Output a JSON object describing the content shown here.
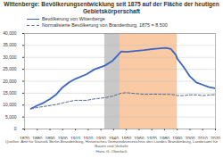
{
  "chart_data": {
    "type": "line",
    "title": "Wittenberge: Bevölkerungsentwicklung seit 1875 auf der Fläche der heutigen Gebietskörperschaft",
    "x": [
      1875,
      1880,
      1885,
      1890,
      1895,
      1900,
      1905,
      1910,
      1919,
      1925,
      1933,
      1939,
      1946,
      1950,
      1964,
      1971,
      1981,
      1985,
      1989,
      1990,
      1995,
      2000,
      2005,
      2010,
      2015,
      2020
    ],
    "series": [
      {
        "name": "Bevölkerung von Wittenberge",
        "color": "#3a66c4",
        "line_style": "solid",
        "values": [
          8500,
          9800,
          11000,
          12500,
          14500,
          17500,
          19500,
          21000,
          23000,
          25000,
          26500,
          28500,
          32500,
          32300,
          33000,
          33500,
          34000,
          33500,
          31000,
          29500,
          26000,
          22000,
          19500,
          18500,
          17500,
          17000
        ]
      },
      {
        "name": "Normalisierte Bevölkerung von Brandenburg, 1875 = 8.500",
        "color": "#5a6a8a",
        "line_style": "dashed",
        "values": [
          8500,
          9000,
          9400,
          9800,
          10300,
          10900,
          11500,
          12000,
          12000,
          12600,
          13100,
          13700,
          15000,
          15200,
          14500,
          14600,
          14500,
          14500,
          14200,
          14000,
          14000,
          14300,
          14300,
          14000,
          14200,
          14400
        ]
      }
    ],
    "shaded_periods": [
      {
        "start": 1933,
        "end": 1945,
        "color": "#c8c8c8"
      },
      {
        "start": 1945,
        "end": 1990,
        "color": "#f9caa4"
      }
    ],
    "xlim": [
      1870,
      2020
    ],
    "xticks": [
      1870,
      1880,
      1890,
      1900,
      1910,
      1920,
      1930,
      1940,
      1950,
      1960,
      1970,
      1980,
      1990,
      2000,
      2010,
      2020
    ],
    "ylim": [
      0,
      40000
    ],
    "yticks": [
      0,
      {
        "value": 5000,
        "label": "5,000"
      },
      {
        "value": 10000,
        "label": "10,000"
      },
      {
        "value": 15000,
        "label": "15,000"
      },
      {
        "value": 20000,
        "label": "20,000"
      },
      {
        "value": 25000,
        "label": "25,000"
      },
      {
        "value": 30000,
        "label": "30,000"
      },
      {
        "value": 35000,
        "label": "35,000"
      },
      {
        "value": 40000,
        "label": "40,000"
      }
    ],
    "grid": true,
    "legend": "top-left",
    "source": "Quellen: Amt für Statistik Berlin-Brandenburg, Historisches Gemeindeverzeichnis des Landes Brandenburg, Landesamt für Bauen und Verkehr",
    "author": "Hans G. Oberlack"
  }
}
